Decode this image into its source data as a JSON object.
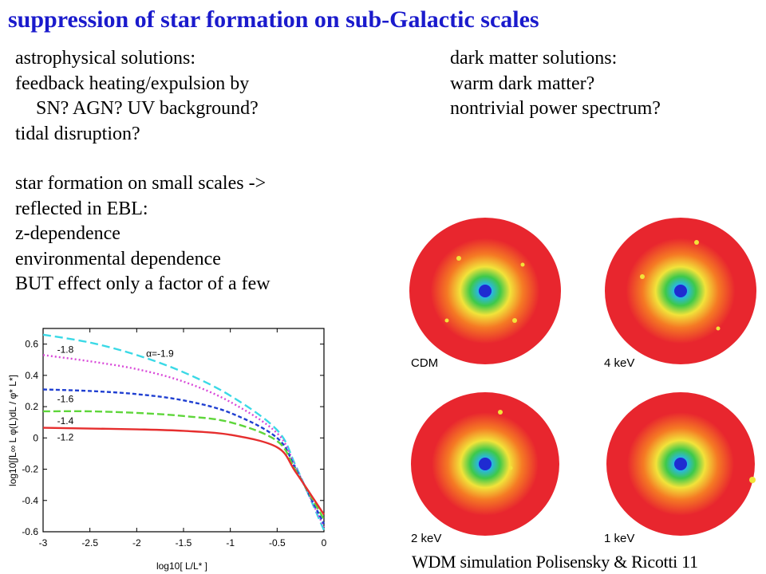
{
  "slide": {
    "title": "suppression of star formation on sub-Galactic scales",
    "left_col_a": [
      "astrophysical solutions:",
      "feedback heating/expulsion by",
      "SN? AGN? UV background?",
      "tidal disruption?"
    ],
    "left_col_b": [
      "star formation on small scales ->",
      "reflected in EBL:",
      "z-dependence",
      "environmental dependence",
      "BUT effect only a factor of a few"
    ],
    "right_col": [
      "dark matter solutions:",
      "warm dark matter?",
      "nontrivial power spectrum?"
    ],
    "credit": "WDM simulation Polisensky & Ricotti 11"
  },
  "halo_panels": {
    "labels": [
      "CDM",
      "4 keV",
      "2 keV",
      "1 keV"
    ],
    "colors": {
      "outer": "#e8262e",
      "orange": "#f57a24",
      "yellow": "#f2e33a",
      "green": "#3ec94a",
      "cyan": "#2ab6e3",
      "core": "#1f2bd1"
    }
  },
  "chart_data": {
    "type": "line",
    "xlabel": "log10[ L/L* ]",
    "ylabel": "log10[∫L∞ L φ(L)dL / φ* L*]",
    "xlim": [
      -3,
      0
    ],
    "ylim": [
      -0.6,
      0.7
    ],
    "xticks": [
      "-3",
      "-2.5",
      "-2",
      "-1.5",
      "-1",
      "-0.5",
      "0"
    ],
    "yticks": [
      "-0.6",
      "-0.4",
      "-0.2",
      "0",
      "0.2",
      "0.4",
      "0.6"
    ],
    "series": [
      {
        "name": "α=-1.9",
        "color": "#3ad9e6",
        "dash": "10,5",
        "x": [
          -3,
          -2.5,
          -2,
          -1.5,
          -1,
          -0.5,
          -0.3,
          0
        ],
        "y": [
          0.66,
          0.61,
          0.53,
          0.42,
          0.27,
          0.05,
          -0.18,
          -0.59
        ]
      },
      {
        "name": "-1.8",
        "color": "#d94ad9",
        "dash": "2,3",
        "x": [
          -3,
          -2.5,
          -2,
          -1.5,
          -1,
          -0.5,
          -0.3,
          0
        ],
        "y": [
          0.53,
          0.49,
          0.44,
          0.36,
          0.23,
          0.03,
          -0.19,
          -0.57
        ]
      },
      {
        "name": "-1.6",
        "color": "#1f3fd1",
        "dash": "5,3",
        "x": [
          -3,
          -2.5,
          -2,
          -1.5,
          -1,
          -0.5,
          -0.3,
          0
        ],
        "y": [
          0.31,
          0.3,
          0.28,
          0.24,
          0.16,
          0.0,
          -0.2,
          -0.55
        ]
      },
      {
        "name": "-1.4",
        "color": "#5ed63a",
        "dash": "9,4",
        "x": [
          -3,
          -2.5,
          -2,
          -1.5,
          -1,
          -0.5,
          -0.3,
          0
        ],
        "y": [
          0.17,
          0.17,
          0.16,
          0.14,
          0.1,
          -0.02,
          -0.21,
          -0.52
        ]
      },
      {
        "name": "-1.2",
        "color": "#e62e2e",
        "dash": "",
        "x": [
          -3,
          -2.5,
          -2,
          -1.5,
          -1,
          -0.5,
          -0.3,
          0
        ],
        "y": [
          0.065,
          0.06,
          0.055,
          0.045,
          0.02,
          -0.06,
          -0.22,
          -0.49
        ]
      }
    ]
  }
}
